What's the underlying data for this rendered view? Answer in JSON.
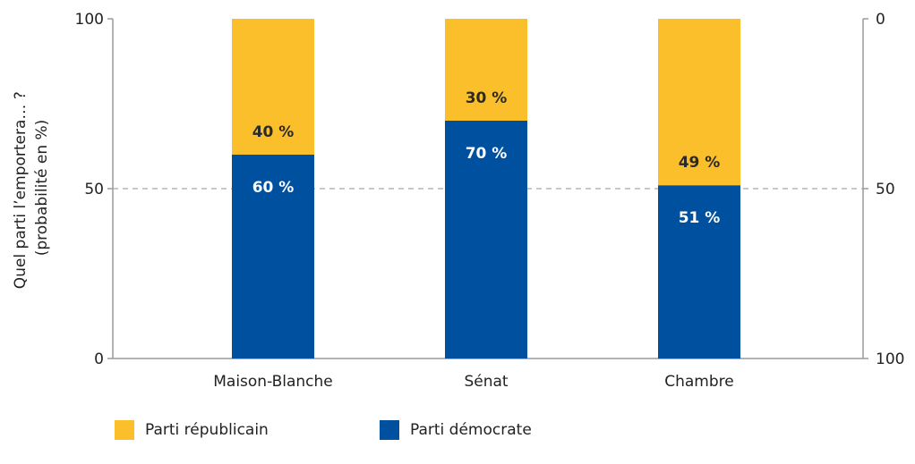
{
  "chart_data": {
    "type": "bar",
    "stacked": true,
    "title": "",
    "ylabel": "Quel parti l’emportera… ? (probabilité en %)",
    "ylabel_lines": [
      "Quel parti l’emportera… ?",
      "(probabilité en %)"
    ],
    "categories": [
      "Maison-Blanche",
      "Sénat",
      "Chambre"
    ],
    "ylim": [
      0,
      100
    ],
    "yticks_left": [
      0,
      50,
      100
    ],
    "yticks_right": [
      100,
      50,
      0
    ],
    "reference_line": 50,
    "series": [
      {
        "name": "Parti démocrate",
        "color": "#0050a0",
        "values": [
          60,
          70,
          51
        ],
        "labels": [
          "60 %",
          "70 %",
          "51 %"
        ],
        "label_color": "#ffffff"
      },
      {
        "name": "Parti républicain",
        "color": "#fcbf2c",
        "values": [
          40,
          30,
          49
        ],
        "labels": [
          "40 %",
          "30 %",
          "49 %"
        ],
        "label_color": "#2a2a2a"
      }
    ],
    "legend": [
      {
        "label": "Parti républicain",
        "color": "#fcbf2c"
      },
      {
        "label": "Parti démocrate",
        "color": "#0050a0"
      }
    ],
    "legend_position": "bottom-left"
  }
}
